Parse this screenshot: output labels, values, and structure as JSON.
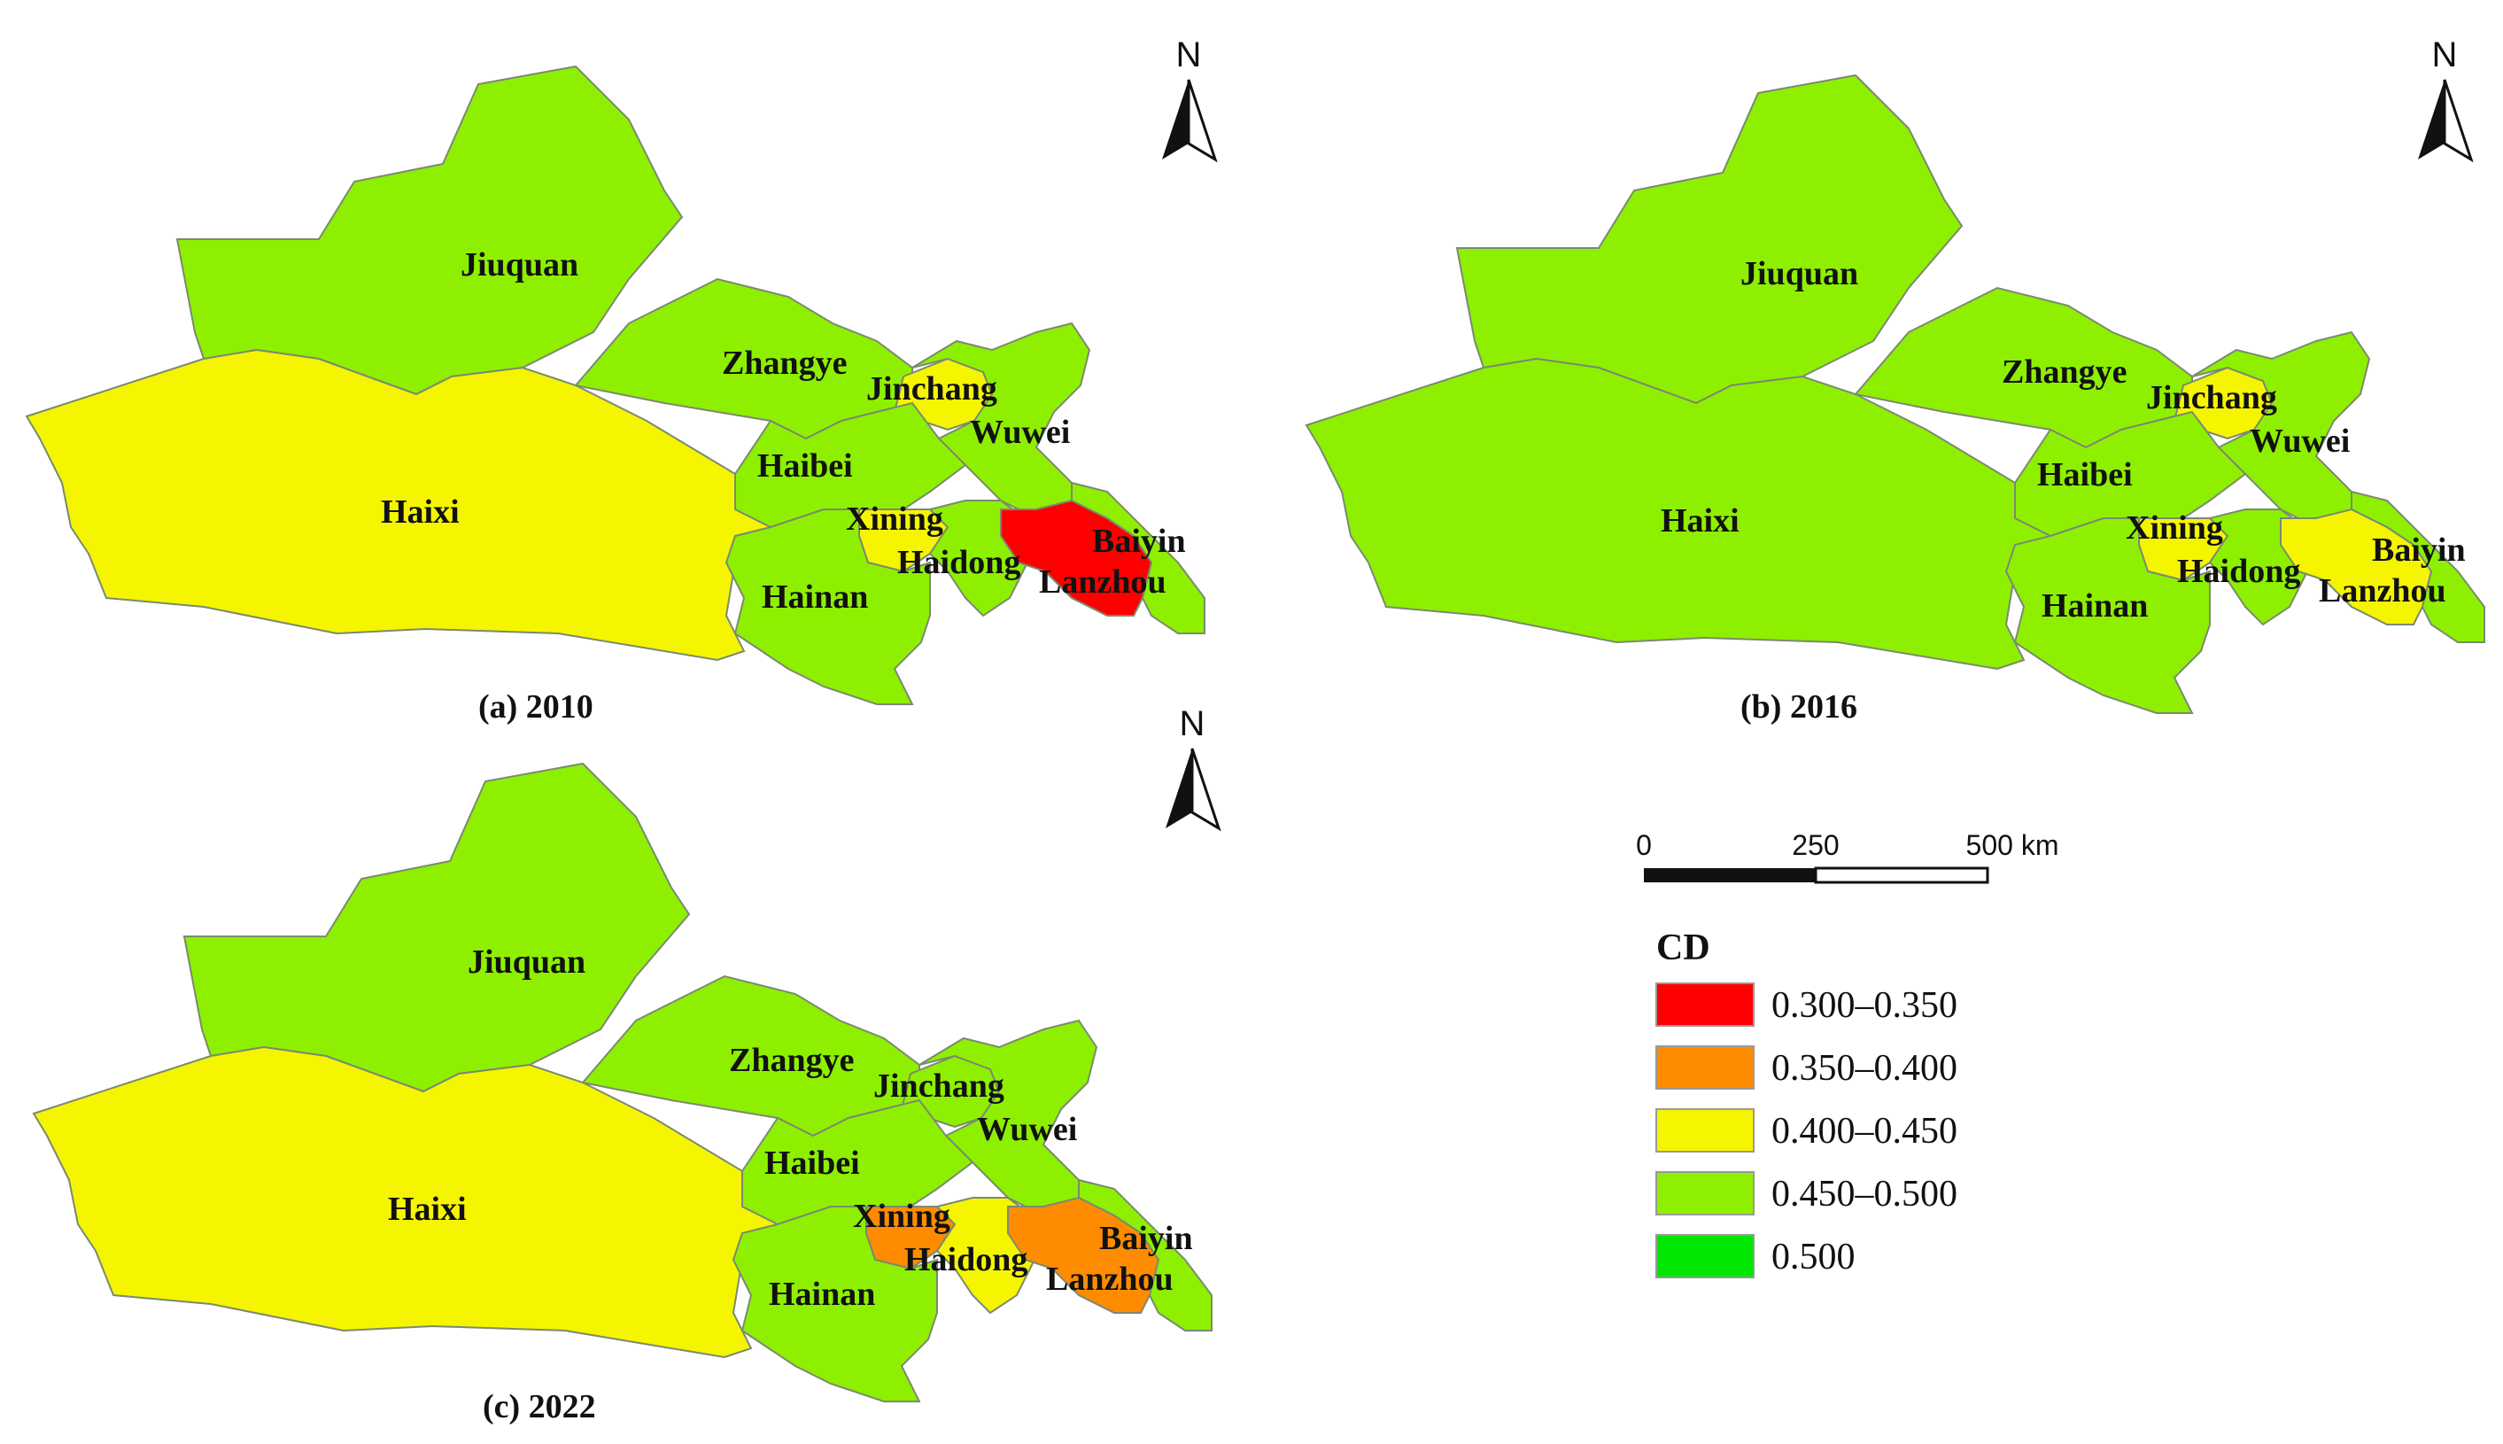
{
  "map": {
    "legend": {
      "title": "CD",
      "classes": [
        {
          "label": "0.300–0.350",
          "color": "#ff0000"
        },
        {
          "label": "0.350–0.400",
          "color": "#ff8c00"
        },
        {
          "label": "0.400–0.450",
          "color": "#f5f500"
        },
        {
          "label": "0.450–0.500",
          "color": "#8ef000"
        },
        {
          "label": "0.500",
          "color": "#00e600"
        }
      ]
    },
    "north_label": "N",
    "scale_bar": {
      "labels": [
        "0",
        "250",
        "500 km"
      ]
    },
    "panels": [
      {
        "caption": "(a)  2010",
        "values": {
          "Jiuquan": "0.450–0.500",
          "Haixi": "0.400–0.450",
          "Zhangye": "0.450–0.500",
          "Jinchang": "0.400–0.450",
          "Wuwei": "0.450–0.500",
          "Haibei": "0.450–0.500",
          "Xining": "0.400–0.450",
          "Haidong": "0.450–0.500",
          "Hainan": "0.450–0.500",
          "Lanzhou": "0.300–0.350",
          "Baiyin": "0.450–0.500"
        }
      },
      {
        "caption": "(b)  2016",
        "values": {
          "Jiuquan": "0.450–0.500",
          "Haixi": "0.450–0.500",
          "Zhangye": "0.450–0.500",
          "Jinchang": "0.400–0.450",
          "Wuwei": "0.450–0.500",
          "Haibei": "0.450–0.500",
          "Xining": "0.400–0.450",
          "Haidong": "0.450–0.500",
          "Hainan": "0.450–0.500",
          "Lanzhou": "0.400–0.450",
          "Baiyin": "0.450–0.500"
        }
      },
      {
        "caption": "(c)  2022",
        "values": {
          "Jiuquan": "0.450–0.500",
          "Haixi": "0.400–0.450",
          "Zhangye": "0.450–0.500",
          "Jinchang": "0.450–0.500",
          "Wuwei": "0.450–0.500",
          "Haibei": "0.450–0.500",
          "Xining": "0.350–0.400",
          "Haidong": "0.400–0.450",
          "Hainan": "0.450–0.500",
          "Lanzhou": "0.350–0.400",
          "Baiyin": "0.450–0.500"
        }
      }
    ]
  }
}
